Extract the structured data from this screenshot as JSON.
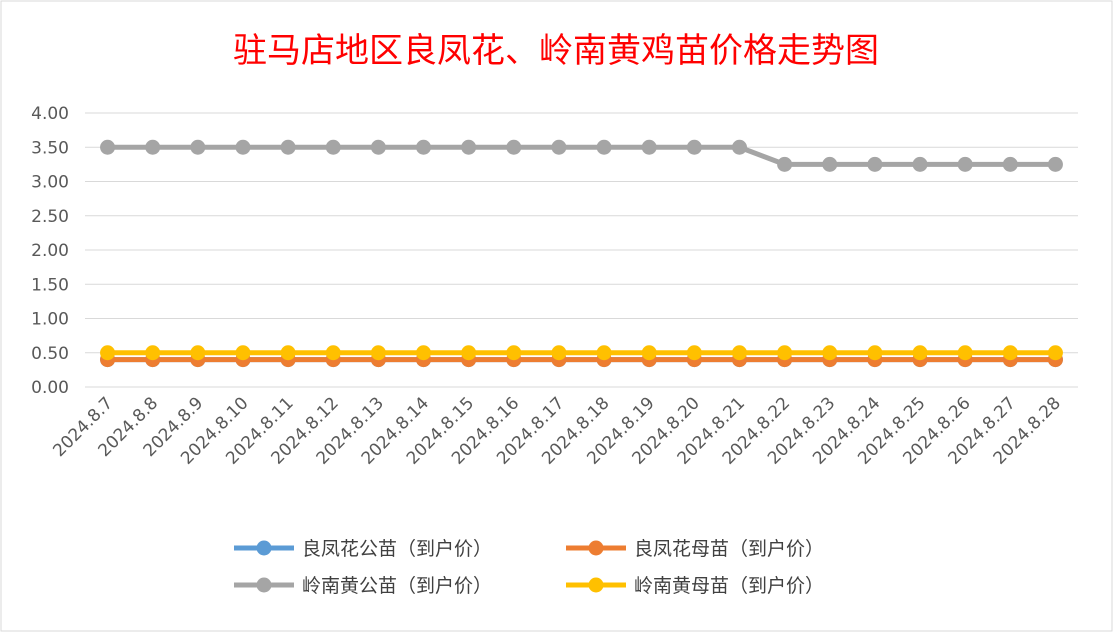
{
  "chart_data": {
    "type": "line",
    "title": "驻马店地区良凤花、岭南黄鸡苗价格走势图",
    "xlabel": "",
    "ylabel": "",
    "ylim": [
      0,
      4
    ],
    "y_ticks": [
      "0.00",
      "0.50",
      "1.00",
      "1.50",
      "2.00",
      "2.50",
      "3.00",
      "3.50",
      "4.00"
    ],
    "categories": [
      "2024.8.7",
      "2024.8.8",
      "2024.8.9",
      "2024.8.10",
      "2024.8.11",
      "2024.8.12",
      "2024.8.13",
      "2024.8.14",
      "2024.8.15",
      "2024.8.16",
      "2024.8.17",
      "2024.8.18",
      "2024.8.19",
      "2024.8.20",
      "2024.8.21",
      "2024.8.22",
      "2024.8.23",
      "2024.8.24",
      "2024.8.25",
      "2024.8.26",
      "2024.8.27",
      "2024.8.28"
    ],
    "grid": true,
    "legend_position": "bottom",
    "series": [
      {
        "name": "良凤花公苗（到户价）",
        "color": "#5b9bd5",
        "values": [
          0.4,
          0.4,
          0.4,
          0.4,
          0.4,
          0.4,
          0.4,
          0.4,
          0.4,
          0.4,
          0.4,
          0.4,
          0.4,
          0.4,
          0.4,
          0.4,
          0.4,
          0.4,
          0.4,
          0.4,
          0.4,
          0.4
        ]
      },
      {
        "name": "良凤花母苗（到户价）",
        "color": "#ed7d31",
        "values": [
          0.4,
          0.4,
          0.4,
          0.4,
          0.4,
          0.4,
          0.4,
          0.4,
          0.4,
          0.4,
          0.4,
          0.4,
          0.4,
          0.4,
          0.4,
          0.4,
          0.4,
          0.4,
          0.4,
          0.4,
          0.4,
          0.4
        ]
      },
      {
        "name": "岭南黄公苗（到户价）",
        "color": "#a5a5a5",
        "values": [
          3.5,
          3.5,
          3.5,
          3.5,
          3.5,
          3.5,
          3.5,
          3.5,
          3.5,
          3.5,
          3.5,
          3.5,
          3.5,
          3.5,
          3.5,
          3.25,
          3.25,
          3.25,
          3.25,
          3.25,
          3.25,
          3.25
        ]
      },
      {
        "name": "岭南黄母苗（到户价）",
        "color": "#ffc000",
        "values": [
          0.5,
          0.5,
          0.5,
          0.5,
          0.5,
          0.5,
          0.5,
          0.5,
          0.5,
          0.5,
          0.5,
          0.5,
          0.5,
          0.5,
          0.5,
          0.5,
          0.5,
          0.5,
          0.5,
          0.5,
          0.5,
          0.5
        ]
      }
    ]
  }
}
